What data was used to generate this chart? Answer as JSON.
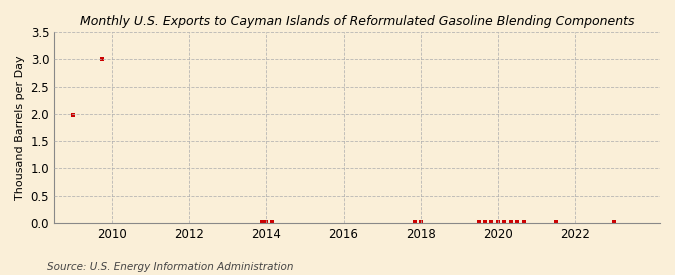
{
  "title": "Monthly U.S. Exports to Cayman Islands of Reformulated Gasoline Blending Components",
  "ylabel": "Thousand Barrels per Day",
  "source": "Source: U.S. Energy Information Administration",
  "background_color": "#faefd8",
  "plot_bg_color": "#faefd8",
  "marker_color": "#cc0000",
  "xlim_start": 2008.5,
  "xlim_end": 2024.2,
  "ylim": [
    0.0,
    3.5
  ],
  "yticks": [
    0.0,
    0.5,
    1.0,
    1.5,
    2.0,
    2.5,
    3.0,
    3.5
  ],
  "xticks": [
    2010,
    2012,
    2014,
    2016,
    2018,
    2020,
    2022
  ],
  "data_points": [
    [
      2009.0,
      1.98
    ],
    [
      2009.75,
      3.01
    ],
    [
      2013.9,
      0.01
    ],
    [
      2014.0,
      0.01
    ],
    [
      2014.15,
      0.01
    ],
    [
      2017.85,
      0.01
    ],
    [
      2018.0,
      0.01
    ],
    [
      2019.5,
      0.01
    ],
    [
      2019.67,
      0.01
    ],
    [
      2019.83,
      0.01
    ],
    [
      2020.0,
      0.01
    ],
    [
      2020.17,
      0.01
    ],
    [
      2020.33,
      0.01
    ],
    [
      2020.5,
      0.01
    ],
    [
      2020.67,
      0.01
    ],
    [
      2021.5,
      0.01
    ],
    [
      2023.0,
      0.01
    ]
  ]
}
